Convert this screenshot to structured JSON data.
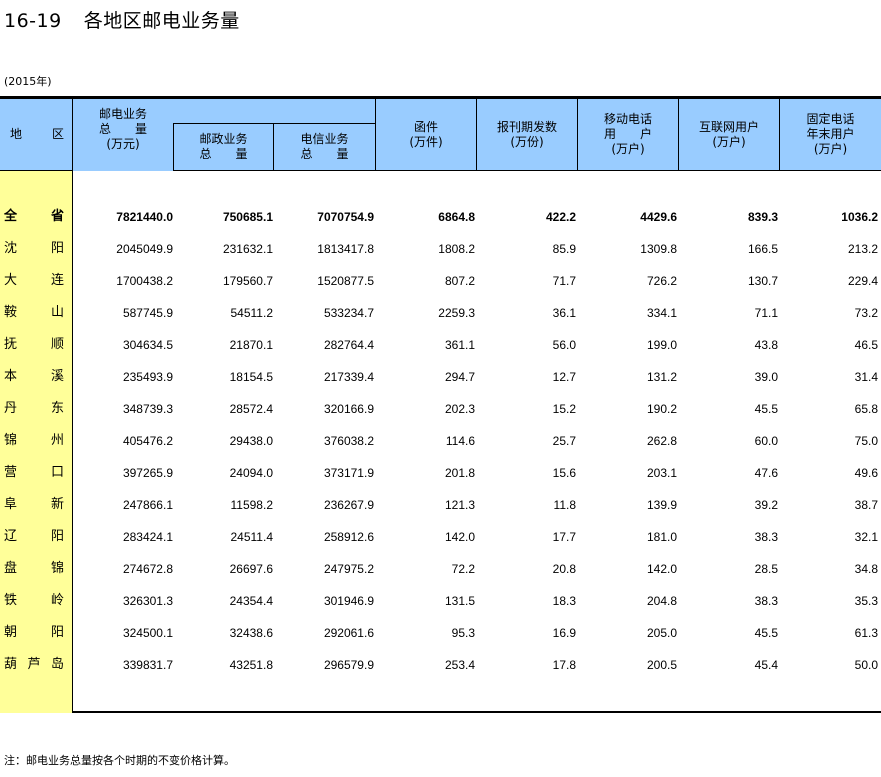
{
  "title": {
    "number": "16-19",
    "text": "各地区邮电业务量"
  },
  "year": "(2015年)",
  "headers": {
    "region": [
      "地",
      "区"
    ],
    "total": [
      "邮电业务",
      "总　　量",
      "(万元)"
    ],
    "postal": [
      "邮政业务",
      "总　　量"
    ],
    "telecom": [
      "电信业务",
      "总　　量"
    ],
    "letters": [
      "函件",
      "(万件)"
    ],
    "periodicals": [
      "报刊期发数",
      "(万份)"
    ],
    "mobile": [
      "移动电话",
      "用　　户",
      "(万户)"
    ],
    "internet": [
      "互联网用户",
      "(万户)"
    ],
    "fixed": [
      "固定电话",
      "年末用户",
      "(万户)"
    ]
  },
  "rows": [
    {
      "region": [
        "全",
        "省"
      ],
      "values": [
        "7821440.0",
        "750685.1",
        "7070754.9",
        "6864.8",
        "422.2",
        "4429.6",
        "839.3",
        "1036.2"
      ]
    },
    {
      "region": [
        "沈",
        "阳"
      ],
      "values": [
        "2045049.9",
        "231632.1",
        "1813417.8",
        "1808.2",
        "85.9",
        "1309.8",
        "166.5",
        "213.2"
      ]
    },
    {
      "region": [
        "大",
        "连"
      ],
      "values": [
        "1700438.2",
        "179560.7",
        "1520877.5",
        "807.2",
        "71.7",
        "726.2",
        "130.7",
        "229.4"
      ]
    },
    {
      "region": [
        "鞍",
        "山"
      ],
      "values": [
        "587745.9",
        "54511.2",
        "533234.7",
        "2259.3",
        "36.1",
        "334.1",
        "71.1",
        "73.2"
      ]
    },
    {
      "region": [
        "抚",
        "顺"
      ],
      "values": [
        "304634.5",
        "21870.1",
        "282764.4",
        "361.1",
        "56.0",
        "199.0",
        "43.8",
        "46.5"
      ]
    },
    {
      "region": [
        "本",
        "溪"
      ],
      "values": [
        "235493.9",
        "18154.5",
        "217339.4",
        "294.7",
        "12.7",
        "131.2",
        "39.0",
        "31.4"
      ]
    },
    {
      "region": [
        "丹",
        "东"
      ],
      "values": [
        "348739.3",
        "28572.4",
        "320166.9",
        "202.3",
        "15.2",
        "190.2",
        "45.5",
        "65.8"
      ]
    },
    {
      "region": [
        "锦",
        "州"
      ],
      "values": [
        "405476.2",
        "29438.0",
        "376038.2",
        "114.6",
        "25.7",
        "262.8",
        "60.0",
        "75.0"
      ]
    },
    {
      "region": [
        "营",
        "口"
      ],
      "values": [
        "397265.9",
        "24094.0",
        "373171.9",
        "201.8",
        "15.6",
        "203.1",
        "47.6",
        "49.6"
      ]
    },
    {
      "region": [
        "阜",
        "新"
      ],
      "values": [
        "247866.1",
        "11598.2",
        "236267.9",
        "121.3",
        "11.8",
        "139.9",
        "39.2",
        "38.7"
      ]
    },
    {
      "region": [
        "辽",
        "阳"
      ],
      "values": [
        "283424.1",
        "24511.4",
        "258912.6",
        "142.0",
        "17.7",
        "181.0",
        "38.3",
        "32.1"
      ]
    },
    {
      "region": [
        "盘",
        "锦"
      ],
      "values": [
        "274672.8",
        "26697.6",
        "247975.2",
        "72.2",
        "20.8",
        "142.0",
        "28.5",
        "34.8"
      ]
    },
    {
      "region": [
        "铁",
        "岭"
      ],
      "values": [
        "326301.3",
        "24354.4",
        "301946.9",
        "131.5",
        "18.3",
        "204.8",
        "38.3",
        "35.3"
      ]
    },
    {
      "region": [
        "朝",
        "阳"
      ],
      "values": [
        "324500.1",
        "32438.6",
        "292061.6",
        "95.3",
        "16.9",
        "205.0",
        "45.5",
        "61.3"
      ]
    },
    {
      "region": [
        "葫",
        "芦",
        "岛"
      ],
      "values": [
        "339831.7",
        "43251.8",
        "296579.9",
        "253.4",
        "17.8",
        "200.5",
        "45.4",
        "50.0"
      ]
    }
  ],
  "note": "注：邮电业务总量按各个时期的不变价格计算。",
  "colors": {
    "header_bg": "#99ccff",
    "region_bg": "#ffff99"
  }
}
